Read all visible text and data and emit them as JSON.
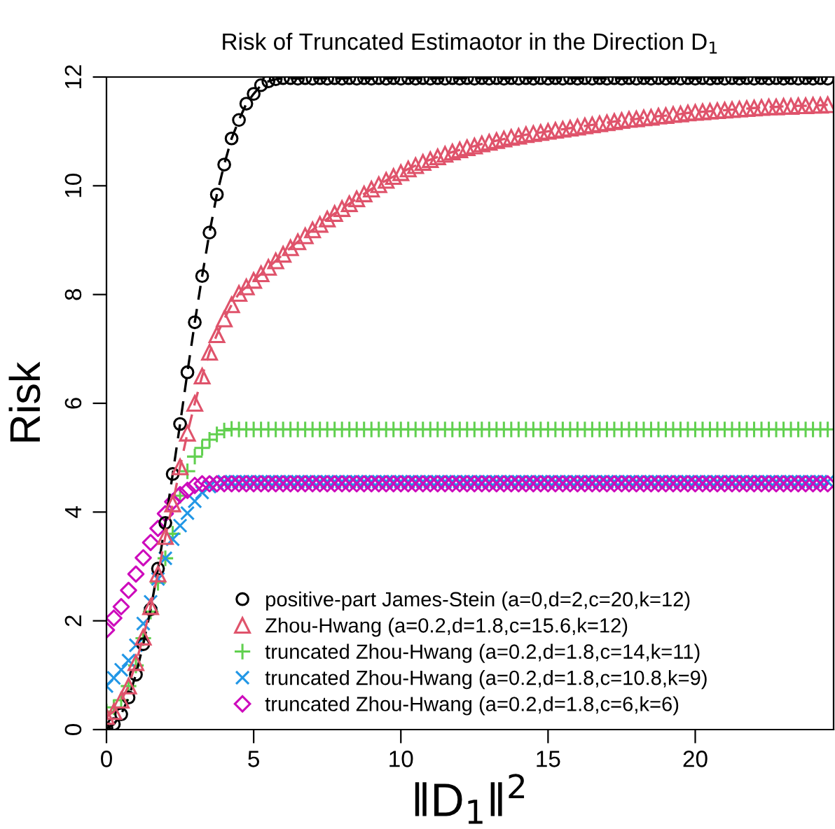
{
  "chart_data": {
    "type": "line",
    "title": "Risk of Truncated Estimaotor in the Direction D$_{1}$",
    "xlabel": "‖D$_{1}$‖$^{2}$",
    "ylabel": "Risk",
    "x": [
      0,
      0.25,
      0.5,
      0.75,
      1,
      1.25,
      1.5,
      1.75,
      2,
      2.25,
      2.5,
      2.75,
      3,
      3.25,
      3.5,
      3.75,
      4,
      4.25,
      4.5,
      4.75,
      5,
      5.25,
      5.5,
      5.75,
      6,
      6.25,
      6.5,
      6.75,
      7,
      7.25,
      7.5,
      7.75,
      8,
      8.25,
      8.5,
      8.75,
      9,
      9.25,
      9.5,
      9.75,
      10,
      10.25,
      10.5,
      10.75,
      11,
      11.25,
      11.5,
      11.75,
      12,
      12.25,
      12.5,
      12.75,
      13,
      13.25,
      13.5,
      13.75,
      14,
      14.25,
      14.5,
      14.75,
      15,
      15.25,
      15.5,
      15.75,
      16,
      16.25,
      16.5,
      16.75,
      17,
      17.25,
      17.5,
      17.75,
      18,
      18.25,
      18.5,
      18.75,
      19,
      19.25,
      19.5,
      19.75,
      20,
      20.25,
      20.5,
      20.75,
      21,
      21.25,
      21.5,
      21.75,
      22,
      22.25,
      22.5,
      22.75,
      23,
      23.25,
      23.5,
      23.75,
      24,
      24.25,
      24.5
    ],
    "series": [
      {
        "name": "positive-part James-Stein (a=0,d=2,c=20,k=12)",
        "color": "#000000",
        "marker": "circle",
        "line_style": "dashed",
        "values": [
          0.02,
          0.1,
          0.28,
          0.59,
          1.01,
          1.57,
          2.21,
          2.96,
          3.8,
          4.7,
          5.62,
          6.57,
          7.49,
          8.34,
          9.14,
          9.84,
          10.39,
          10.87,
          11.21,
          11.51,
          11.69,
          11.85,
          11.92,
          11.96,
          11.98,
          11.98,
          11.97,
          11.98,
          11.97,
          11.98,
          11.97,
          11.98,
          11.97,
          11.98,
          11.97,
          11.98,
          11.97,
          11.98,
          11.97,
          11.98,
          11.97,
          11.98,
          11.97,
          11.98,
          11.97,
          11.98,
          11.97,
          11.98,
          11.97,
          11.98,
          11.97,
          11.98,
          11.97,
          11.98,
          11.97,
          11.98,
          11.97,
          11.98,
          11.97,
          11.98,
          11.97,
          11.98,
          11.97,
          11.98,
          11.97,
          11.98,
          11.97,
          11.98,
          11.97,
          11.98,
          11.97,
          11.98,
          11.97,
          11.98,
          11.97,
          11.98,
          11.97,
          11.98,
          11.97,
          11.98,
          11.97,
          11.98,
          11.97,
          11.98,
          11.97,
          11.98,
          11.97,
          11.98,
          11.97,
          11.98,
          11.97,
          11.98,
          11.97,
          11.98,
          11.97,
          11.98,
          11.97,
          11.98,
          11.97
        ]
      },
      {
        "name": "Zhou-Hwang (a=0.2,d=1.8,c=15.6,k=12)",
        "color": "#df536b",
        "marker": "triangle",
        "line_style": "dashed",
        "values": [
          0.24,
          0.33,
          0.54,
          0.8,
          1.23,
          1.7,
          2.26,
          2.86,
          3.55,
          4.15,
          4.83,
          5.45,
          6.0,
          6.5,
          6.94,
          7.26,
          7.55,
          7.81,
          8.02,
          8.14,
          8.26,
          8.38,
          8.5,
          8.62,
          8.74,
          8.86,
          8.97,
          9.08,
          9.19,
          9.29,
          9.39,
          9.49,
          9.58,
          9.67,
          9.76,
          9.85,
          9.94,
          10.02,
          10.1,
          10.17,
          10.24,
          10.31,
          10.37,
          10.43,
          10.48,
          10.53,
          10.58,
          10.62,
          10.66,
          10.7,
          10.73,
          10.77,
          10.8,
          10.83,
          10.86,
          10.89,
          10.91,
          10.94,
          10.96,
          10.98,
          11.0,
          11.02,
          11.04,
          11.06,
          11.08,
          11.1,
          11.12,
          11.14,
          11.16,
          11.18,
          11.2,
          11.22,
          11.23,
          11.25,
          11.26,
          11.28,
          11.29,
          11.31,
          11.32,
          11.34,
          11.35,
          11.36,
          11.37,
          11.38,
          11.39,
          11.4,
          11.41,
          11.42,
          11.43,
          11.44,
          11.45,
          11.45,
          11.46,
          11.46,
          11.47,
          11.47,
          11.48,
          11.48,
          11.49
        ]
      },
      {
        "name": "truncated Zhou-Hwang (a=0.2,d=1.8,c=14,k=11)",
        "type": "scatter",
        "color": "#61d04f",
        "marker": "plus",
        "values": [
          0.33,
          0.41,
          0.54,
          0.8,
          1.18,
          1.68,
          2.17,
          2.7,
          3.15,
          3.6,
          4.3,
          4.75,
          5.02,
          5.18,
          5.33,
          5.43,
          5.5,
          5.53,
          5.52,
          5.52,
          5.52,
          5.52,
          5.52,
          5.52,
          5.52,
          5.52,
          5.52,
          5.52,
          5.52,
          5.52,
          5.52,
          5.52,
          5.52,
          5.52,
          5.52,
          5.52,
          5.52,
          5.52,
          5.52,
          5.52,
          5.52,
          5.52,
          5.52,
          5.52,
          5.52,
          5.52,
          5.52,
          5.52,
          5.52,
          5.52,
          5.52,
          5.52,
          5.52,
          5.52,
          5.52,
          5.52,
          5.52,
          5.52,
          5.52,
          5.52,
          5.52,
          5.52,
          5.52,
          5.52,
          5.52,
          5.52,
          5.52,
          5.52,
          5.52,
          5.52,
          5.52,
          5.52,
          5.52,
          5.52,
          5.52,
          5.52,
          5.52,
          5.52,
          5.52,
          5.52,
          5.52,
          5.52,
          5.52,
          5.52,
          5.52,
          5.52,
          5.52,
          5.52,
          5.52,
          5.52,
          5.52,
          5.52,
          5.52,
          5.52,
          5.52,
          5.52,
          5.52,
          5.52,
          5.52
        ]
      },
      {
        "name": "truncated Zhou-Hwang (a=0.2,d=1.8,c=10.8,k=9)",
        "type": "scatter",
        "color": "#2297e6",
        "marker": "cross",
        "values": [
          0.8,
          0.95,
          1.1,
          1.27,
          1.55,
          1.95,
          2.35,
          2.77,
          3.15,
          3.5,
          3.75,
          3.98,
          4.2,
          4.36,
          4.47,
          4.53,
          4.56,
          4.56,
          4.56,
          4.56,
          4.56,
          4.56,
          4.56,
          4.56,
          4.56,
          4.56,
          4.56,
          4.56,
          4.56,
          4.56,
          4.56,
          4.56,
          4.56,
          4.56,
          4.56,
          4.56,
          4.56,
          4.56,
          4.56,
          4.56,
          4.56,
          4.56,
          4.56,
          4.56,
          4.56,
          4.56,
          4.56,
          4.56,
          4.56,
          4.56,
          4.56,
          4.56,
          4.56,
          4.56,
          4.56,
          4.56,
          4.56,
          4.56,
          4.56,
          4.56,
          4.56,
          4.56,
          4.56,
          4.56,
          4.56,
          4.56,
          4.56,
          4.56,
          4.56,
          4.56,
          4.56,
          4.56,
          4.56,
          4.56,
          4.56,
          4.56,
          4.56,
          4.56,
          4.56,
          4.56,
          4.56,
          4.56,
          4.56,
          4.56,
          4.56,
          4.56,
          4.56,
          4.56,
          4.56,
          4.56,
          4.56,
          4.56,
          4.56,
          4.56,
          4.56,
          4.56,
          4.56,
          4.56,
          4.56
        ]
      },
      {
        "name": "truncated Zhou-Hwang (a=0.2,d=1.8,c=6,k=6)",
        "type": "scatter",
        "color": "#cd0bbc",
        "marker": "diamond",
        "values": [
          1.83,
          2.05,
          2.26,
          2.56,
          2.86,
          3.16,
          3.44,
          3.7,
          3.97,
          4.19,
          4.32,
          4.4,
          4.49,
          4.52,
          4.52,
          4.52,
          4.52,
          4.52,
          4.52,
          4.52,
          4.52,
          4.52,
          4.52,
          4.52,
          4.52,
          4.52,
          4.52,
          4.52,
          4.52,
          4.52,
          4.52,
          4.52,
          4.52,
          4.52,
          4.52,
          4.52,
          4.52,
          4.52,
          4.52,
          4.52,
          4.52,
          4.52,
          4.52,
          4.52,
          4.52,
          4.52,
          4.52,
          4.52,
          4.52,
          4.52,
          4.52,
          4.52,
          4.52,
          4.52,
          4.52,
          4.52,
          4.52,
          4.52,
          4.52,
          4.52,
          4.52,
          4.52,
          4.52,
          4.52,
          4.52,
          4.52,
          4.52,
          4.52,
          4.52,
          4.52,
          4.52,
          4.52,
          4.52,
          4.52,
          4.52,
          4.52,
          4.52,
          4.52,
          4.52,
          4.52,
          4.52,
          4.52,
          4.52,
          4.52,
          4.52,
          4.52,
          4.52,
          4.52,
          4.52,
          4.52,
          4.52,
          4.52,
          4.52,
          4.52,
          4.52,
          4.52,
          4.52,
          4.52,
          4.52
        ]
      }
    ],
    "xlim": [
      0,
      24.7
    ],
    "xticks": [
      0,
      5,
      10,
      15,
      20
    ],
    "ylim": [
      0,
      12
    ],
    "yticks": [
      0,
      2,
      4,
      6,
      8,
      10,
      12
    ],
    "grid": false,
    "legend": "bottom"
  }
}
